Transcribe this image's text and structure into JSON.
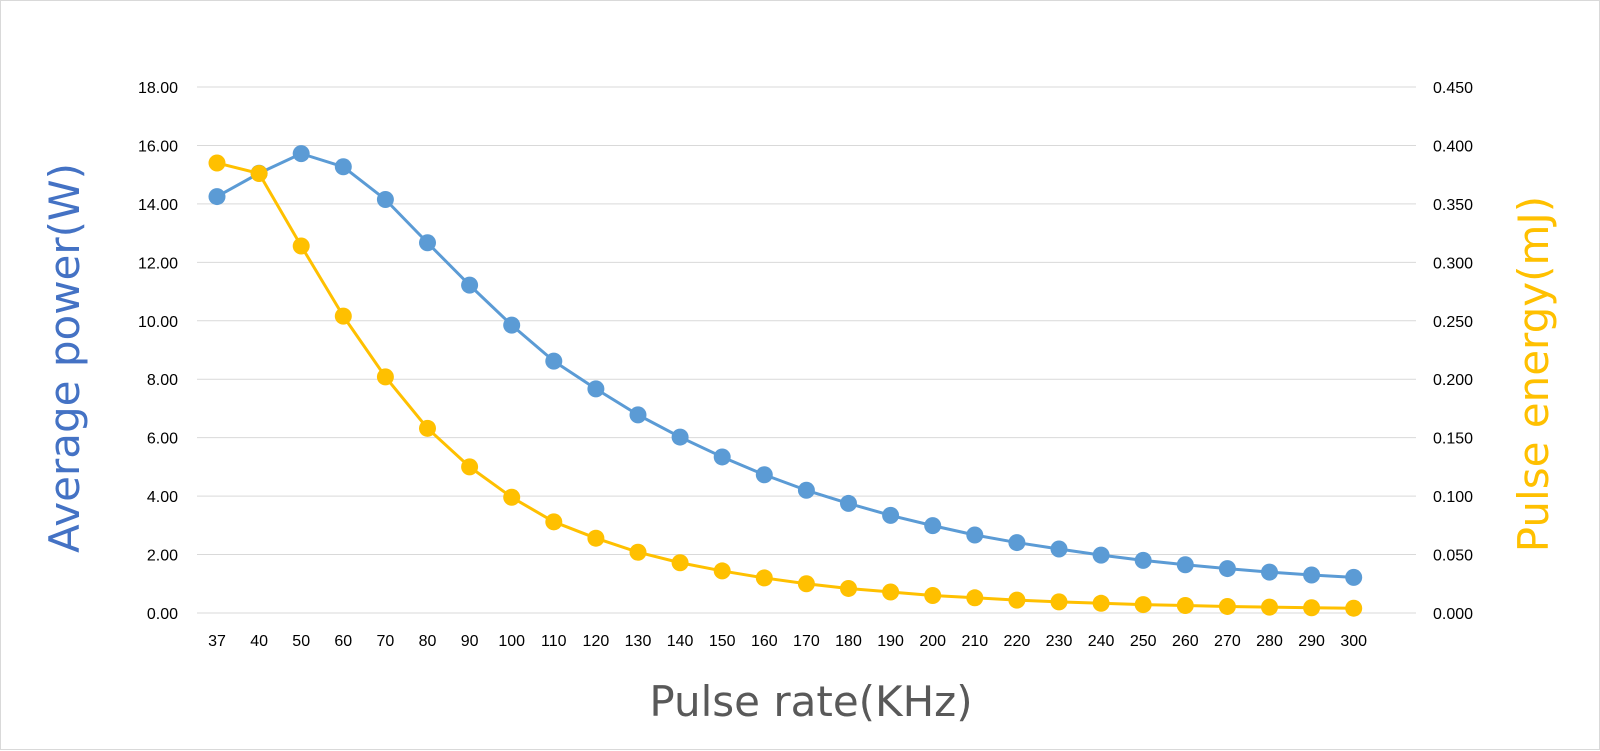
{
  "chart_data": {
    "type": "line",
    "title": "",
    "xlabel": "Pulse rate(KHz)",
    "ylabel": "Average power(W)",
    "ylabel_right": "Pulse energy(mJ)",
    "categories": [
      "37",
      "40",
      "50",
      "60",
      "70",
      "80",
      "90",
      "100",
      "110",
      "120",
      "130",
      "140",
      "150",
      "160",
      "170",
      "180",
      "190",
      "200",
      "210",
      "220",
      "230",
      "240",
      "250",
      "260",
      "270",
      "280",
      "290",
      "300"
    ],
    "y_left_ticks": [
      "0.00",
      "2.00",
      "4.00",
      "6.00",
      "8.00",
      "10.00",
      "12.00",
      "14.00",
      "16.00",
      "18.00"
    ],
    "y_right_ticks": [
      "0.000",
      "0.050",
      "0.100",
      "0.150",
      "0.200",
      "0.250",
      "0.300",
      "0.350",
      "0.400",
      "0.450"
    ],
    "ylim_left": [
      0,
      18
    ],
    "ylim_right": [
      0,
      0.45
    ],
    "grid": true,
    "legend": "none",
    "series": [
      {
        "axis": "left",
        "color": "#5B9BD5",
        "values": [
          14.25,
          15.05,
          15.72,
          15.27,
          14.15,
          12.67,
          11.22,
          9.85,
          8.62,
          7.67,
          6.78,
          6.02,
          5.34,
          4.73,
          4.2,
          3.75,
          3.34,
          2.99,
          2.67,
          2.41,
          2.19,
          1.98,
          1.8,
          1.65,
          1.52,
          1.4,
          1.3,
          1.22
        ]
      },
      {
        "axis": "right",
        "color": "#FFC000",
        "values": [
          0.385,
          0.376,
          0.314,
          0.254,
          0.202,
          0.158,
          0.125,
          0.099,
          0.078,
          0.064,
          0.052,
          0.043,
          0.036,
          0.03,
          0.025,
          0.021,
          0.018,
          0.015,
          0.013,
          0.011,
          0.0095,
          0.0083,
          0.0072,
          0.0064,
          0.0056,
          0.005,
          0.0045,
          0.0041
        ]
      }
    ],
    "colors": {
      "left_axis_title": "#4472C4",
      "right_axis_title": "#FFC000",
      "grid": "#d9d9d9"
    }
  }
}
